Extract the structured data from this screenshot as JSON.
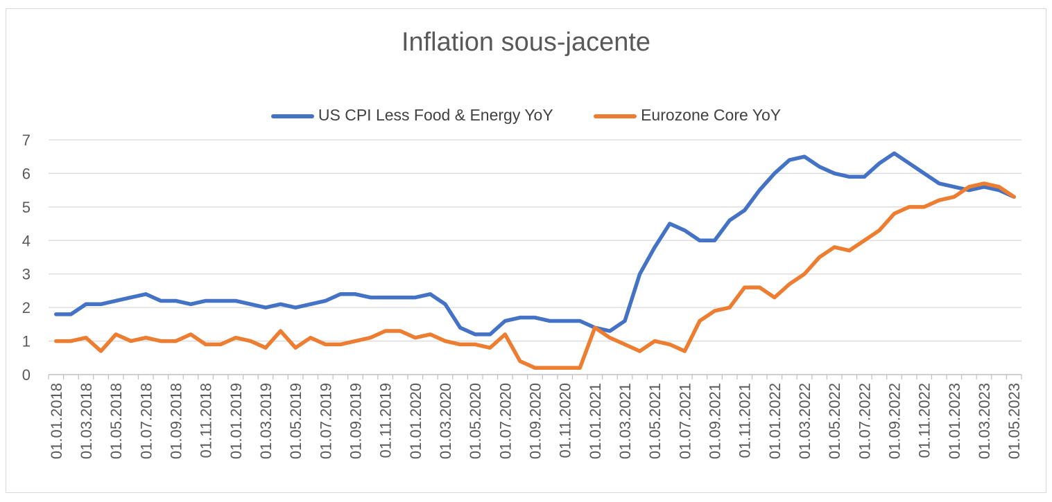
{
  "chart_data": {
    "type": "line",
    "title": "Inflation sous-jacente",
    "xlabel": "",
    "ylabel": "",
    "ylim": [
      0,
      7
    ],
    "yticks": [
      0,
      1,
      2,
      3,
      4,
      5,
      6,
      7
    ],
    "grid": true,
    "legend_position": "top",
    "x": [
      "01.01.2018",
      "01.02.2018",
      "01.03.2018",
      "01.04.2018",
      "01.05.2018",
      "01.06.2018",
      "01.07.2018",
      "01.08.2018",
      "01.09.2018",
      "01.10.2018",
      "01.11.2018",
      "01.12.2018",
      "01.01.2019",
      "01.02.2019",
      "01.03.2019",
      "01.04.2019",
      "01.05.2019",
      "01.06.2019",
      "01.07.2019",
      "01.08.2019",
      "01.09.2019",
      "01.10.2019",
      "01.11.2019",
      "01.12.2019",
      "01.01.2020",
      "01.02.2020",
      "01.03.2020",
      "01.04.2020",
      "01.05.2020",
      "01.06.2020",
      "01.07.2020",
      "01.08.2020",
      "01.09.2020",
      "01.10.2020",
      "01.11.2020",
      "01.12.2020",
      "01.01.2021",
      "01.02.2021",
      "01.03.2021",
      "01.04.2021",
      "01.05.2021",
      "01.06.2021",
      "01.07.2021",
      "01.08.2021",
      "01.09.2021",
      "01.10.2021",
      "01.11.2021",
      "01.12.2021",
      "01.01.2022",
      "01.02.2022",
      "01.03.2022",
      "01.04.2022",
      "01.05.2022",
      "01.06.2022",
      "01.07.2022",
      "01.08.2022",
      "01.09.2022",
      "01.10.2022",
      "01.11.2022",
      "01.12.2022",
      "01.01.2023",
      "01.02.2023",
      "01.03.2023",
      "01.04.2023",
      "01.05.2023"
    ],
    "xtick_labels": [
      "01.01.2018",
      "01.03.2018",
      "01.05.2018",
      "01.07.2018",
      "01.09.2018",
      "01.11.2018",
      "01.01.2019",
      "01.03.2019",
      "01.05.2019",
      "01.07.2019",
      "01.09.2019",
      "01.11.2019",
      "01.01.2020",
      "01.03.2020",
      "01.05.2020",
      "01.07.2020",
      "01.09.2020",
      "01.11.2020",
      "01.01.2021",
      "01.03.2021",
      "01.05.2021",
      "01.07.2021",
      "01.09.2021",
      "01.11.2021",
      "01.01.2022",
      "01.03.2022",
      "01.05.2022",
      "01.07.2022",
      "01.09.2022",
      "01.11.2022",
      "01.01.2023",
      "01.03.2023",
      "01.05.2023"
    ],
    "series": [
      {
        "name": "US CPI  Less Food & Energy YoY",
        "color": "#4472c4",
        "values": [
          1.8,
          1.8,
          2.1,
          2.1,
          2.2,
          2.3,
          2.4,
          2.2,
          2.2,
          2.1,
          2.2,
          2.2,
          2.2,
          2.1,
          2.0,
          2.1,
          2.0,
          2.1,
          2.2,
          2.4,
          2.4,
          2.3,
          2.3,
          2.3,
          2.3,
          2.4,
          2.1,
          1.4,
          1.2,
          1.2,
          1.6,
          1.7,
          1.7,
          1.6,
          1.6,
          1.6,
          1.4,
          1.3,
          1.6,
          3.0,
          3.8,
          4.5,
          4.3,
          4.0,
          4.0,
          4.6,
          4.9,
          5.5,
          6.0,
          6.4,
          6.5,
          6.2,
          6.0,
          5.9,
          5.9,
          6.3,
          6.6,
          6.3,
          6.0,
          5.7,
          5.6,
          5.5,
          5.6,
          5.5,
          5.3
        ]
      },
      {
        "name": "Eurozone Core YoY",
        "color": "#ed7d31",
        "values": [
          1.0,
          1.0,
          1.1,
          0.7,
          1.2,
          1.0,
          1.1,
          1.0,
          1.0,
          1.2,
          0.9,
          0.9,
          1.1,
          1.0,
          0.8,
          1.3,
          0.8,
          1.1,
          0.9,
          0.9,
          1.0,
          1.1,
          1.3,
          1.3,
          1.1,
          1.2,
          1.0,
          0.9,
          0.9,
          0.8,
          1.2,
          0.4,
          0.2,
          0.2,
          0.2,
          0.2,
          1.4,
          1.1,
          0.9,
          0.7,
          1.0,
          0.9,
          0.7,
          1.6,
          1.9,
          2.0,
          2.6,
          2.6,
          2.3,
          2.7,
          3.0,
          3.5,
          3.8,
          3.7,
          4.0,
          4.3,
          4.8,
          5.0,
          5.0,
          5.2,
          5.3,
          5.6,
          5.7,
          5.6,
          5.3
        ]
      }
    ]
  }
}
